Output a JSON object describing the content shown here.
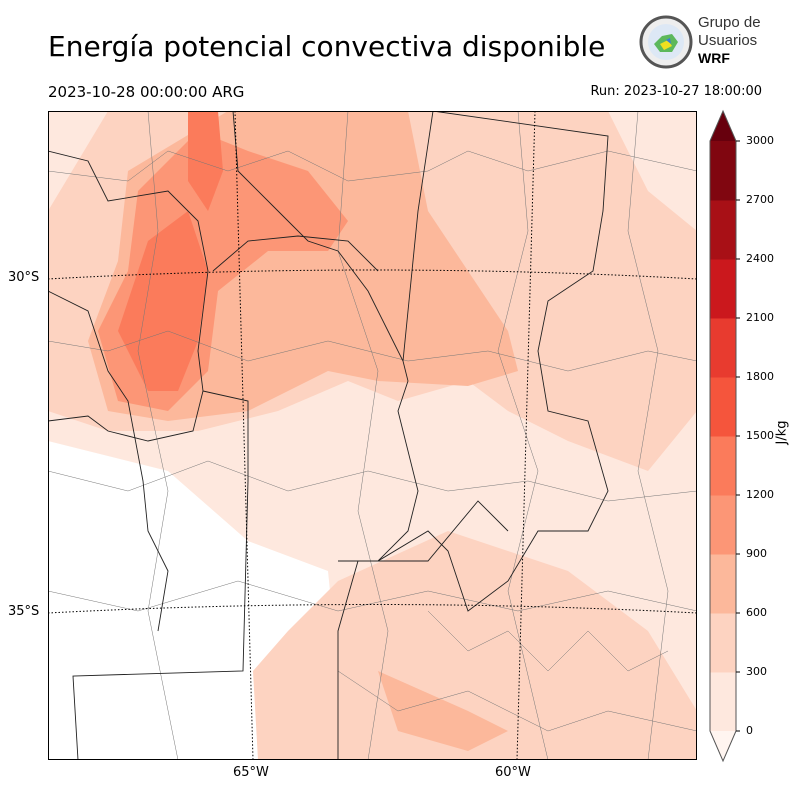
{
  "header": {
    "title": "Energía potencial convectiva disponible",
    "valid_time": "2023-10-28 00:00:00 ARG",
    "run_time": "Run: 2023-10-27 18:00:00"
  },
  "logo": {
    "line1": "Grupo de",
    "line2": "Usuarios",
    "line3": "WRF"
  },
  "axes": {
    "lat_labels": [
      "30°S",
      "35°S"
    ],
    "lon_labels": [
      "65°W",
      "60°W"
    ]
  },
  "colorbar": {
    "unit": "J/kg",
    "ticks": [
      "0",
      "300",
      "600",
      "900",
      "1200",
      "1500",
      "1800",
      "2100",
      "2400",
      "2700",
      "3000"
    ],
    "colors": [
      "#fee8de",
      "#fdd3c1",
      "#fcb89b",
      "#fc9676",
      "#fb7b5b",
      "#f5553c",
      "#e83b2f",
      "#cb181d",
      "#a81016",
      "#800610"
    ],
    "over_color": "#67000d",
    "under_color": "#fff5f0"
  }
}
